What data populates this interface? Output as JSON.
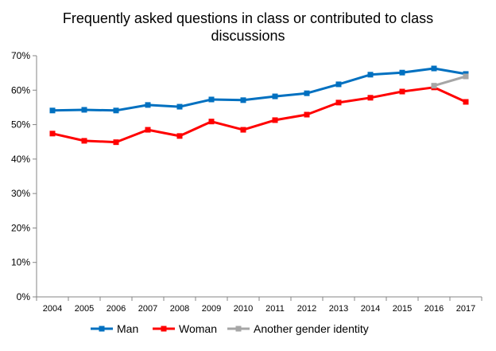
{
  "chart_data": {
    "type": "line",
    "title": "Frequently asked questions in class or contributed to class discussions",
    "title_lines": [
      "Frequently asked questions in class or contributed to class",
      "discussions"
    ],
    "xlabel": "",
    "ylabel": "",
    "categories": [
      "2004",
      "2005",
      "2006",
      "2007",
      "2008",
      "2009",
      "2010",
      "2011",
      "2012",
      "2013",
      "2014",
      "2015",
      "2016",
      "2017"
    ],
    "ylim": [
      0,
      70
    ],
    "yticks": [
      0,
      10,
      20,
      30,
      40,
      50,
      60,
      70
    ],
    "ytick_format": "%",
    "grid": false,
    "legend_position": "bottom",
    "series": [
      {
        "name": "Man",
        "color": "#0070C0",
        "values": [
          54.1,
          54.3,
          54.1,
          55.7,
          55.2,
          57.3,
          57.1,
          58.2,
          59.1,
          61.7,
          64.5,
          65.1,
          66.3,
          64.7
        ]
      },
      {
        "name": "Woman",
        "color": "#FF0000",
        "values": [
          47.4,
          45.3,
          44.9,
          48.5,
          46.7,
          50.9,
          48.5,
          51.3,
          52.9,
          56.4,
          57.8,
          59.6,
          60.8,
          56.6
        ]
      },
      {
        "name": "Another gender identity",
        "color": "#A6A6A6",
        "values": [
          null,
          null,
          null,
          null,
          null,
          null,
          null,
          null,
          null,
          null,
          null,
          null,
          61.3,
          64.0
        ]
      }
    ]
  }
}
